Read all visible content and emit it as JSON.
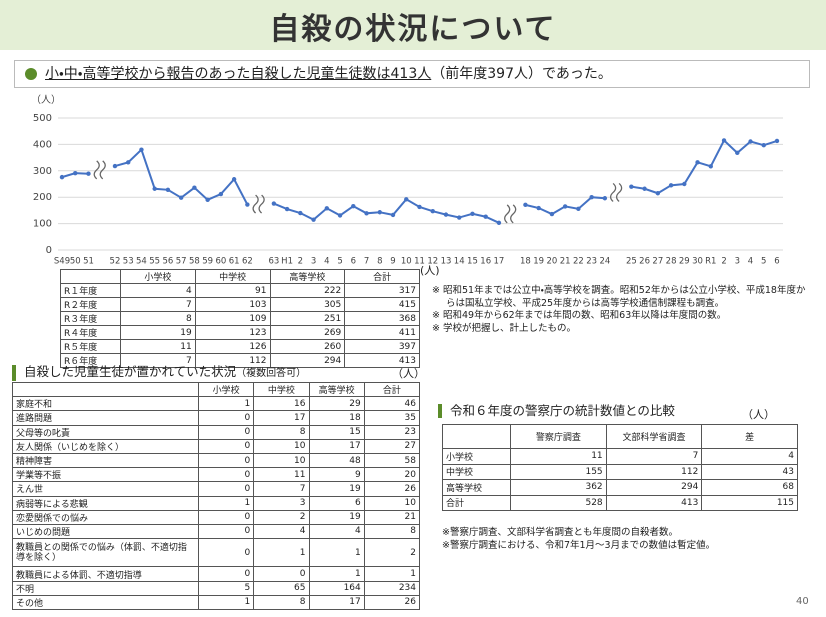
{
  "header": {
    "title": "自殺の状況について"
  },
  "summary": [
    "小・中・高等学校から報告のあった自殺した児童生徒数は413人",
    "（前年度397人）であった。"
  ],
  "chart_data": {
    "type": "line",
    "unit_label": "（人）",
    "categories": [
      "S49",
      "50",
      "51",
      null,
      "52",
      "53",
      "54",
      "55",
      "56",
      "57",
      "58",
      "59",
      "60",
      "61",
      "62",
      null,
      "63",
      "H1",
      "2",
      "3",
      "4",
      "5",
      "6",
      "7",
      "8",
      "9",
      "10",
      "11",
      "12",
      "13",
      "14",
      "15",
      "16",
      "17",
      null,
      "18",
      "19",
      "20",
      "21",
      "22",
      "23",
      "24",
      null,
      "25",
      "26",
      "27",
      "28",
      "29",
      "30",
      "R1",
      "2",
      "3",
      "4",
      "5",
      "6"
    ],
    "series": [
      {
        "color": "#4472c4",
        "values": [
          276,
          291,
          289,
          null,
          318,
          332,
          380,
          232,
          228,
          198,
          236,
          190,
          212,
          268,
          172,
          null,
          176,
          155,
          140,
          115,
          158,
          131,
          166,
          139,
          143,
          133,
          192,
          163,
          147,
          134,
          123,
          137,
          126,
          103,
          null,
          171,
          159,
          136,
          165,
          156,
          200,
          196,
          null,
          240,
          232,
          215,
          245,
          250,
          332,
          317,
          415,
          368,
          411,
          397,
          413
        ]
      }
    ],
    "ylim": [
      0,
      500
    ],
    "yticks": [
      0,
      100,
      200,
      300,
      400,
      500
    ],
    "grid": true
  },
  "table_yearly": {
    "unit": "(人)",
    "columns": [
      "小学校",
      "中学校",
      "高等学校",
      "合計"
    ],
    "rows": [
      [
        "R１年度",
        4,
        91,
        222,
        317
      ],
      [
        "R２年度",
        7,
        103,
        305,
        415
      ],
      [
        "R３年度",
        8,
        109,
        251,
        368
      ],
      [
        "R４年度",
        19,
        123,
        269,
        411
      ],
      [
        "R５年度",
        11,
        126,
        260,
        397
      ],
      [
        "R６年度",
        7,
        112,
        294,
        413
      ]
    ]
  },
  "chart_notes": [
    "※ 昭和51年までは公立中・高等学校を調査。昭和52年からは公立小学校、平成18年度からは国私立学校、平成25年度からは高等学校通信制課程も調査。",
    "※ 昭和49年から62年までは年間の数、昭和63年以降は年度間の数。",
    "※ 学校が把握し、計上したもの。"
  ],
  "table_situation": {
    "heading": "自殺した児童生徒が置かれていた状況",
    "heading_note": "（複数回答可）",
    "unit": "（人）",
    "columns": [
      "小学校",
      "中学校",
      "高等学校",
      "合計"
    ],
    "rows": [
      [
        "家庭不和",
        1,
        16,
        29,
        46
      ],
      [
        "進路問題",
        0,
        17,
        18,
        35
      ],
      [
        "父母等の叱責",
        0,
        8,
        15,
        23
      ],
      [
        "友人関係（いじめを除く）",
        0,
        10,
        17,
        27
      ],
      [
        "精神障害",
        0,
        10,
        48,
        58
      ],
      [
        "学業等不振",
        0,
        11,
        9,
        20
      ],
      [
        "えん世",
        0,
        7,
        19,
        26
      ],
      [
        "病弱等による悲観",
        1,
        3,
        6,
        10
      ],
      [
        "恋愛関係での悩み",
        0,
        2,
        19,
        21
      ],
      [
        "いじめの問題",
        0,
        4,
        4,
        8
      ],
      [
        "教職員との関係での悩み（体罰、不適切指導を除く）",
        0,
        1,
        1,
        2
      ],
      [
        "教職員による体罰、不適切指導",
        0,
        0,
        1,
        1
      ],
      [
        "不明",
        5,
        65,
        164,
        234
      ],
      [
        "その他",
        1,
        8,
        17,
        26
      ]
    ]
  },
  "table_police": {
    "heading": "令和６年度の警察庁の統計数値との比較",
    "unit": "（人）",
    "columns": [
      "警察庁調査",
      "文部科学省調査",
      "差"
    ],
    "rows": [
      [
        "小学校",
        11,
        7,
        4
      ],
      [
        "中学校",
        155,
        112,
        43
      ],
      [
        "高等学校",
        362,
        294,
        68
      ],
      [
        "合計",
        528,
        413,
        115
      ]
    ]
  },
  "police_notes": [
    "※警察庁調査、文部科学省調査とも年度間の自殺者数。",
    "※警察庁調査における、令和7年1月～3月までの数値は暫定値。"
  ],
  "page_number": "40"
}
